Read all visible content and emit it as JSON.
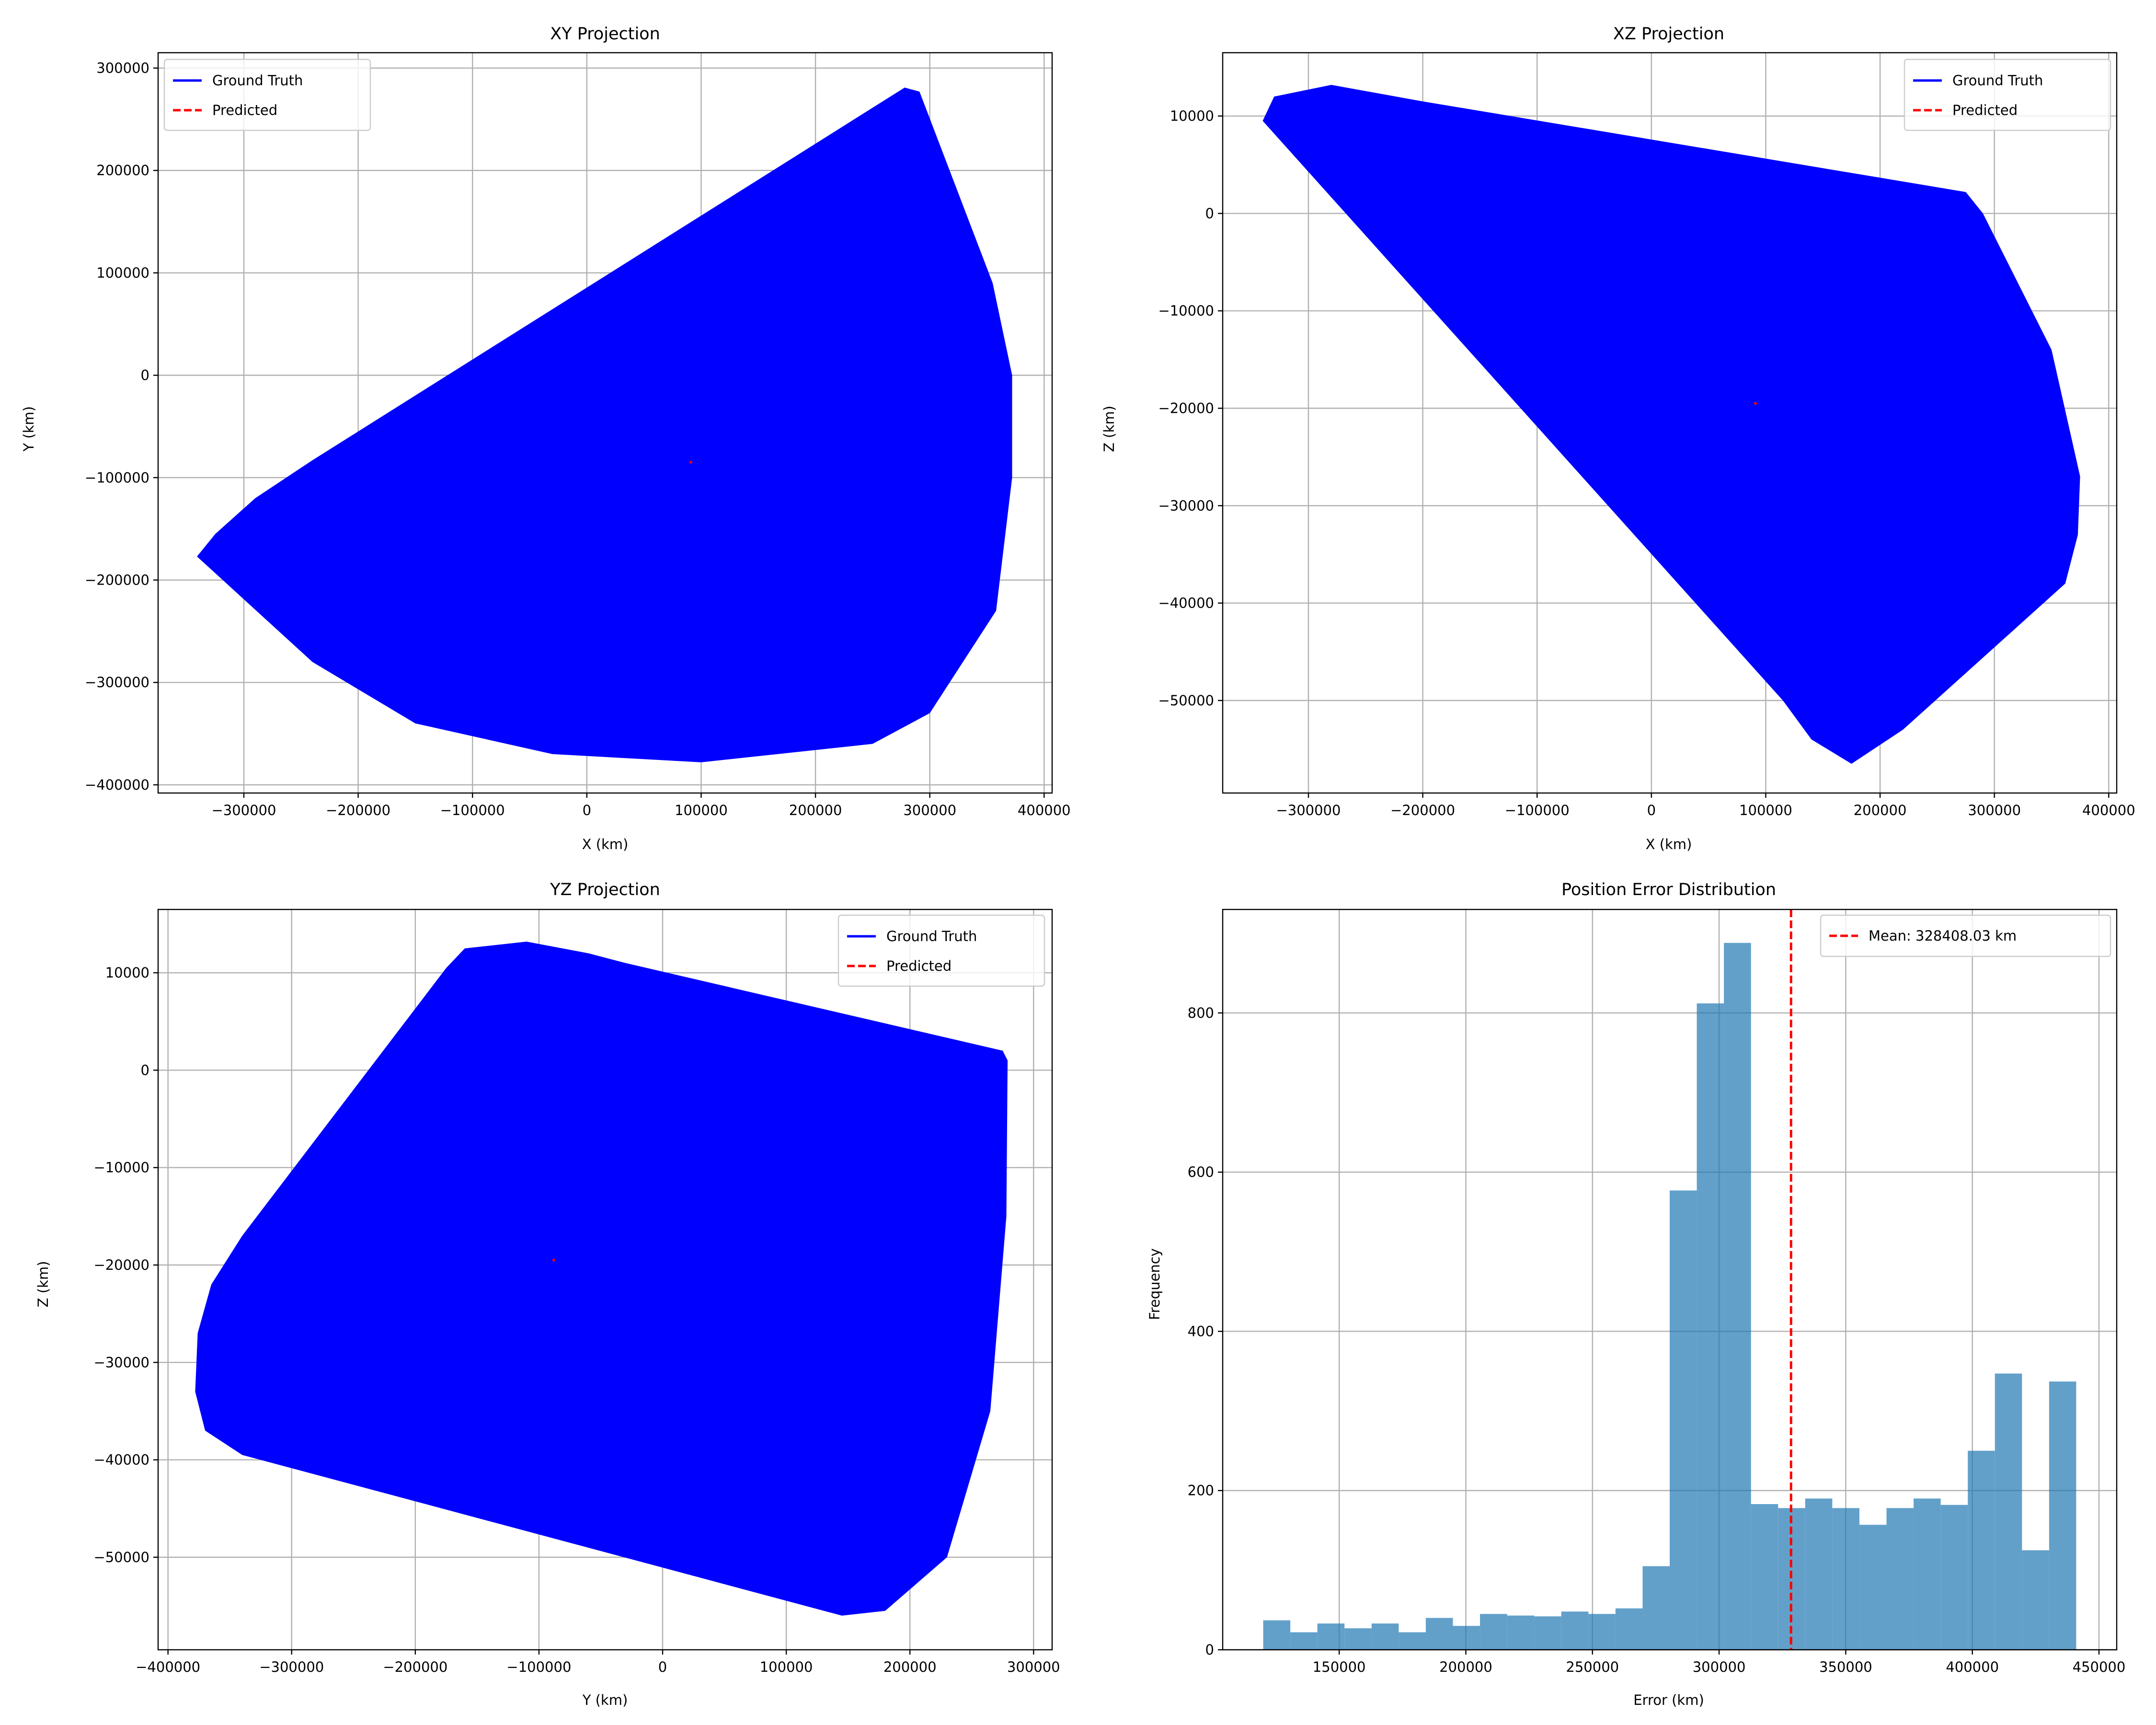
{
  "colors": {
    "ground_truth": "#0000ff",
    "predicted": "#ff0000",
    "hist_bar": "#1f77b4",
    "mean_line": "#ff0000"
  },
  "chart_data": [
    {
      "id": "xy",
      "type": "area",
      "title": "XY Projection",
      "xlabel": "X (km)",
      "ylabel": "Y (km)",
      "xlim": [
        -375000,
        407000
      ],
      "ylim": [
        -408000,
        315000
      ],
      "xticks": [
        -300000,
        -200000,
        -100000,
        0,
        100000,
        200000,
        300000,
        400000
      ],
      "xtick_labels": [
        "−300000",
        "−200000",
        "−100000",
        "0",
        "100000",
        "200000",
        "300000",
        "400000"
      ],
      "yticks": [
        -400000,
        -300000,
        -200000,
        -100000,
        0,
        100000,
        200000,
        300000
      ],
      "ytick_labels": [
        "−400000",
        "−300000",
        "−200000",
        "−100000",
        "0",
        "100000",
        "200000",
        "300000"
      ],
      "grid": true,
      "legend": {
        "position": "upper-left",
        "entries": [
          "Ground Truth",
          "Predicted"
        ]
      },
      "series": [
        {
          "name": "Ground Truth",
          "style": "filled-region",
          "outline": [
            [
              -341000,
              -177000
            ],
            [
              -325000,
              -155000
            ],
            [
              -290000,
              -120000
            ],
            [
              -240000,
              -83000
            ],
            [
              278000,
              281000
            ],
            [
              291000,
              277000
            ],
            [
              355000,
              90000
            ],
            [
              372000,
              0
            ],
            [
              372000,
              -100000
            ],
            [
              358000,
              -230000
            ],
            [
              300000,
              -330000
            ],
            [
              250000,
              -360000
            ],
            [
              100000,
              -378000
            ],
            [
              -30000,
              -370000
            ],
            [
              -150000,
              -340000
            ],
            [
              -240000,
              -280000
            ],
            [
              -341000,
              -177000
            ]
          ]
        },
        {
          "name": "Predicted",
          "style": "point",
          "x": [
            91000
          ],
          "y": [
            -85000
          ]
        }
      ]
    },
    {
      "id": "xz",
      "type": "area",
      "title": "XZ Projection",
      "xlabel": "X (km)",
      "ylabel": "Z (km)",
      "xlim": [
        -375000,
        407000
      ],
      "ylim": [
        -59500,
        16500
      ],
      "xticks": [
        -300000,
        -200000,
        -100000,
        0,
        100000,
        200000,
        300000,
        400000
      ],
      "xtick_labels": [
        "−300000",
        "−200000",
        "−100000",
        "0",
        "100000",
        "200000",
        "300000",
        "400000"
      ],
      "yticks": [
        -50000,
        -40000,
        -30000,
        -20000,
        -10000,
        0,
        10000
      ],
      "ytick_labels": [
        "−50000",
        "−40000",
        "−30000",
        "−20000",
        "−10000",
        "0",
        "10000"
      ],
      "grid": true,
      "legend": {
        "position": "upper-right",
        "entries": [
          "Ground Truth",
          "Predicted"
        ]
      },
      "series": [
        {
          "name": "Ground Truth",
          "style": "filled-region",
          "outline": [
            [
              -340000,
              9500
            ],
            [
              -330000,
              12000
            ],
            [
              -280000,
              13200
            ],
            [
              -200000,
              11500
            ],
            [
              275000,
              2200
            ],
            [
              290000,
              0
            ],
            [
              350000,
              -14000
            ],
            [
              375000,
              -27000
            ],
            [
              373000,
              -33000
            ],
            [
              362000,
              -38000
            ],
            [
              220000,
              -53000
            ],
            [
              175000,
              -56500
            ],
            [
              140000,
              -54000
            ],
            [
              115000,
              -50000
            ],
            [
              -340000,
              9500
            ]
          ]
        },
        {
          "name": "Predicted",
          "style": "point",
          "x": [
            91000
          ],
          "y": [
            -19500
          ]
        }
      ]
    },
    {
      "id": "yz",
      "type": "area",
      "title": "YZ Projection",
      "xlabel": "Y (km)",
      "ylabel": "Z (km)",
      "xlim": [
        -408000,
        315000
      ],
      "ylim": [
        -59500,
        16500
      ],
      "xticks": [
        -400000,
        -300000,
        -200000,
        -100000,
        0,
        100000,
        200000,
        300000
      ],
      "xtick_labels": [
        "−400000",
        "−300000",
        "−200000",
        "−100000",
        "0",
        "100000",
        "200000",
        "300000"
      ],
      "yticks": [
        -50000,
        -40000,
        -30000,
        -20000,
        -10000,
        0,
        10000
      ],
      "ytick_labels": [
        "−50000",
        "−40000",
        "−30000",
        "−20000",
        "−10000",
        "0",
        "10000"
      ],
      "grid": true,
      "legend": {
        "position": "upper-right",
        "entries": [
          "Ground Truth",
          "Predicted"
        ]
      },
      "series": [
        {
          "name": "Ground Truth",
          "style": "filled-region",
          "outline": [
            [
              -175000,
              10500
            ],
            [
              -160000,
              12500
            ],
            [
              -110000,
              13200
            ],
            [
              -60000,
              12000
            ],
            [
              -30000,
              11000
            ],
            [
              275000,
              2000
            ],
            [
              279000,
              1000
            ],
            [
              278000,
              -15000
            ],
            [
              265000,
              -35000
            ],
            [
              230000,
              -50000
            ],
            [
              180000,
              -55500
            ],
            [
              145000,
              -56000
            ],
            [
              -340000,
              -39500
            ],
            [
              -370000,
              -37000
            ],
            [
              -378000,
              -33000
            ],
            [
              -376000,
              -27000
            ],
            [
              -365000,
              -22000
            ],
            [
              -340000,
              -17000
            ],
            [
              -175000,
              10500
            ]
          ]
        },
        {
          "name": "Predicted",
          "style": "point",
          "x": [
            -88000
          ],
          "y": [
            -19500
          ]
        }
      ]
    },
    {
      "id": "hist",
      "type": "bar",
      "title": "Position Error Distribution",
      "xlabel": "Error (km)",
      "ylabel": "Frequency",
      "xlim": [
        104000,
        457000
      ],
      "ylim": [
        0,
        930
      ],
      "xticks": [
        150000,
        200000,
        250000,
        300000,
        350000,
        400000,
        450000
      ],
      "xtick_labels": [
        "150000",
        "200000",
        "250000",
        "300000",
        "350000",
        "400000",
        "450000"
      ],
      "yticks": [
        0,
        200,
        400,
        600,
        800
      ],
      "ytick_labels": [
        "0",
        "200",
        "400",
        "600",
        "800"
      ],
      "grid": true,
      "legend": {
        "position": "upper-right",
        "entries": [
          "Mean: 328408.03 km"
        ]
      },
      "bin_start": 120000,
      "bin_width": 10700,
      "values": [
        37,
        22,
        33,
        27,
        33,
        22,
        40,
        30,
        45,
        43,
        42,
        48,
        45,
        52,
        105,
        577,
        812,
        888,
        183,
        178,
        190,
        178,
        157,
        178,
        190,
        182,
        250,
        347,
        125,
        337
      ],
      "mean": 328408.03
    }
  ]
}
